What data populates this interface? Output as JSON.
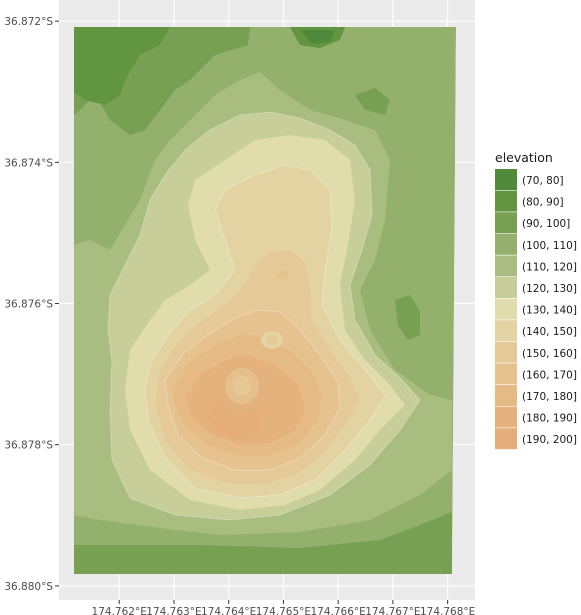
{
  "chart_data": {
    "type": "heatmap",
    "subtype": "filled-contour elevation map",
    "title": "",
    "xlabel": "",
    "ylabel": "",
    "x_ticks": [
      "174.762°E",
      "174.763°E",
      "174.764°E",
      "174.765°E",
      "174.766°E",
      "174.767°E",
      "174.768°E"
    ],
    "y_ticks": [
      "36.872°S",
      "36.874°S",
      "36.876°S",
      "36.878°S",
      "36.880°S"
    ],
    "x_tick_values": [
      174.762,
      174.763,
      174.764,
      174.765,
      174.766,
      174.767,
      174.768
    ],
    "y_tick_values": [
      -36.872,
      -36.874,
      -36.876,
      -36.878,
      -36.88
    ],
    "xlim": [
      174.7609,
      174.7685
    ],
    "ylim": [
      -36.8802,
      -36.8717
    ],
    "grid": true,
    "legend": {
      "title": "elevation",
      "position": "right",
      "entries": [
        {
          "label": "(70, 80]",
          "color": "#4e8a3a"
        },
        {
          "label": "(80, 90]",
          "color": "#62953f"
        },
        {
          "label": "(90, 100]",
          "color": "#77a052"
        },
        {
          "label": "(100, 110]",
          "color": "#93b06c"
        },
        {
          "label": "(110, 120]",
          "color": "#aabd81"
        },
        {
          "label": "(120, 130]",
          "color": "#c7ce99"
        },
        {
          "label": "(130, 140]",
          "color": "#e0dcac"
        },
        {
          "label": "(140, 150]",
          "color": "#e3d3a3"
        },
        {
          "label": "(150, 160]",
          "color": "#e5ca98"
        },
        {
          "label": "(160, 170]",
          "color": "#e6c28f"
        },
        {
          "label": "(170, 180]",
          "color": "#e6ba85"
        },
        {
          "label": "(180, 190]",
          "color": "#e5b27e"
        },
        {
          "label": "(190, 200]",
          "color": "#e4ad79"
        }
      ]
    }
  }
}
